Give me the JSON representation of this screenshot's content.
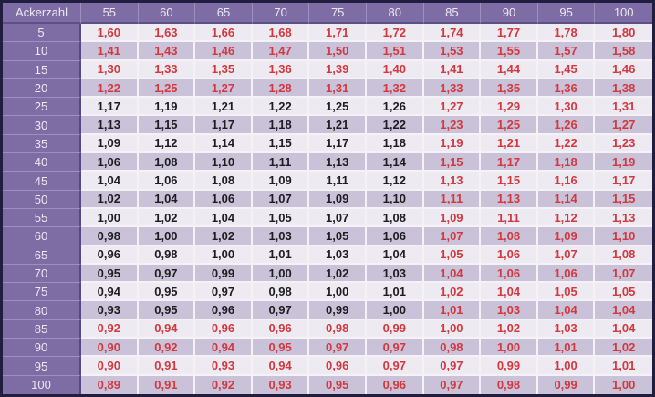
{
  "colors": {
    "header_bg": "#7d6da4",
    "header_text": "#ece8f3",
    "row_light": "#edeaf2",
    "row_dark": "#c9c2d8",
    "value_red": "#d2383e",
    "value_black": "#1d1d20",
    "border_dark": "#201d3e",
    "separator_light": "#f4f2f7"
  },
  "chart_data": {
    "type": "table",
    "corner_label": "Ackerzahl",
    "columns": [
      "55",
      "60",
      "65",
      "70",
      "75",
      "80",
      "85",
      "90",
      "95",
      "100"
    ],
    "rows": [
      {
        "label": "5",
        "values": [
          "1,60",
          "1,63",
          "1,66",
          "1,68",
          "1,71",
          "1,72",
          "1,74",
          "1,77",
          "1,78",
          "1,80"
        ]
      },
      {
        "label": "10",
        "values": [
          "1,41",
          "1,43",
          "1,46",
          "1,47",
          "1,50",
          "1,51",
          "1,53",
          "1,55",
          "1,57",
          "1,58"
        ]
      },
      {
        "label": "15",
        "values": [
          "1,30",
          "1,33",
          "1,35",
          "1,36",
          "1,39",
          "1,40",
          "1,41",
          "1,44",
          "1,45",
          "1,46"
        ]
      },
      {
        "label": "20",
        "values": [
          "1,22",
          "1,25",
          "1,27",
          "1,28",
          "1,31",
          "1,32",
          "1,33",
          "1,35",
          "1,36",
          "1,38"
        ]
      },
      {
        "label": "25",
        "values": [
          "1,17",
          "1,19",
          "1,21",
          "1,22",
          "1,25",
          "1,26",
          "1,27",
          "1,29",
          "1,30",
          "1,31"
        ]
      },
      {
        "label": "30",
        "values": [
          "1,13",
          "1,15",
          "1,17",
          "1,18",
          "1,21",
          "1,22",
          "1,23",
          "1,25",
          "1,26",
          "1,27"
        ]
      },
      {
        "label": "35",
        "values": [
          "1,09",
          "1,12",
          "1,14",
          "1,15",
          "1,17",
          "1,18",
          "1,19",
          "1,21",
          "1,22",
          "1,23"
        ]
      },
      {
        "label": "40",
        "values": [
          "1,06",
          "1,08",
          "1,10",
          "1,11",
          "1,13",
          "1,14",
          "1,15",
          "1,17",
          "1,18",
          "1,19"
        ]
      },
      {
        "label": "45",
        "values": [
          "1,04",
          "1,06",
          "1,08",
          "1,09",
          "1,11",
          "1,12",
          "1,13",
          "1,15",
          "1,16",
          "1,17"
        ]
      },
      {
        "label": "50",
        "values": [
          "1,02",
          "1,04",
          "1,06",
          "1,07",
          "1,09",
          "1,10",
          "1,11",
          "1,13",
          "1,14",
          "1,15"
        ]
      },
      {
        "label": "55",
        "values": [
          "1,00",
          "1,02",
          "1,04",
          "1,05",
          "1,07",
          "1,08",
          "1,09",
          "1,11",
          "1,12",
          "1,13"
        ]
      },
      {
        "label": "60",
        "values": [
          "0,98",
          "1,00",
          "1,02",
          "1,03",
          "1,05",
          "1,06",
          "1,07",
          "1,08",
          "1,09",
          "1,10"
        ]
      },
      {
        "label": "65",
        "values": [
          "0,96",
          "0,98",
          "1,00",
          "1,01",
          "1,03",
          "1,04",
          "1,05",
          "1,06",
          "1,07",
          "1,08"
        ]
      },
      {
        "label": "70",
        "values": [
          "0,95",
          "0,97",
          "0,99",
          "1,00",
          "1,02",
          "1,03",
          "1,04",
          "1,06",
          "1,06",
          "1,07"
        ]
      },
      {
        "label": "75",
        "values": [
          "0,94",
          "0,95",
          "0,97",
          "0,98",
          "1,00",
          "1,01",
          "1,02",
          "1,04",
          "1,05",
          "1,05"
        ]
      },
      {
        "label": "80",
        "values": [
          "0,93",
          "0,95",
          "0,96",
          "0,97",
          "0,99",
          "1,00",
          "1,01",
          "1,03",
          "1,04",
          "1,04"
        ]
      },
      {
        "label": "85",
        "values": [
          "0,92",
          "0,94",
          "0,96",
          "0,96",
          "0,98",
          "0,99",
          "1,00",
          "1,02",
          "1,03",
          "1,04"
        ]
      },
      {
        "label": "90",
        "values": [
          "0,90",
          "0,92",
          "0,94",
          "0,95",
          "0,97",
          "0,97",
          "0,98",
          "1,00",
          "1,01",
          "1,02"
        ]
      },
      {
        "label": "95",
        "values": [
          "0,90",
          "0,91",
          "0,93",
          "0,94",
          "0,96",
          "0,97",
          "0,97",
          "0,99",
          "1,00",
          "1,01"
        ]
      },
      {
        "label": "100",
        "values": [
          "0,89",
          "0,91",
          "0,92",
          "0,93",
          "0,95",
          "0,96",
          "0,97",
          "0,98",
          "0,99",
          "1,00"
        ]
      }
    ],
    "emphasis_black_region": {
      "row_min": 25,
      "row_max": 80,
      "col_min": 55,
      "col_max": 80
    }
  }
}
